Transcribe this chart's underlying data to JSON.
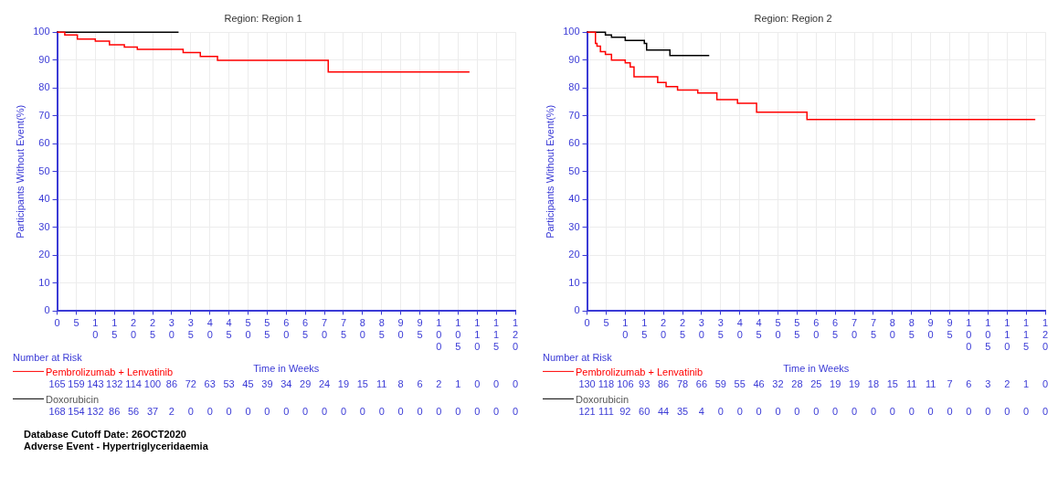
{
  "chart_data": [
    {
      "type": "step",
      "title": "Region: Region 1",
      "xlabel": "Time in Weeks",
      "ylabel": "Participants Without Event(%)",
      "xlim": [
        0,
        120
      ],
      "xticks": [
        0,
        5,
        10,
        15,
        20,
        25,
        30,
        35,
        40,
        45,
        50,
        55,
        60,
        65,
        70,
        75,
        80,
        85,
        90,
        95,
        100,
        105,
        110,
        115,
        120
      ],
      "ylim": [
        0,
        100
      ],
      "yticks": [
        0,
        10,
        20,
        30,
        40,
        50,
        60,
        70,
        80,
        90,
        100
      ],
      "grid": true,
      "legend": "bottom",
      "marker": "none",
      "series": [
        {
          "name": "Pembrolizumab + Lenvatinib",
          "color": "#ff0000",
          "x": [
            0,
            2,
            5.3,
            10,
            13.7,
            17.6,
            21,
            33,
            37.5,
            42,
            71,
            108
          ],
          "values": [
            100,
            99,
            97.5,
            96.8,
            95.5,
            94.7,
            93.8,
            92.7,
            91.3,
            89.9,
            85.7,
            85.7
          ]
        },
        {
          "name": "Doxorubicin",
          "color": "#000000",
          "x": [
            0,
            31.8
          ],
          "values": [
            100,
            100
          ]
        }
      ],
      "annotations": [
        "Number at Risk",
        "165 159 143 132 114 100 86 72 63 53 45 39 34 29 24 19 15 11 8 6 2 1 0 0 0",
        "168 154 132 86 56 37 2 0 0 0 0 0 0 0 0 0 0 0 0 0 0 0 0 0 0",
        "Database Cutoff Date: 26OCT2020",
        "Adverse Event - Hypertriglyceridaemia"
      ]
    },
    {
      "type": "step",
      "title": "Region: Region 2",
      "xlabel": "Time in Weeks",
      "ylabel": "Participants Without Event(%)",
      "xlim": [
        0,
        120
      ],
      "xticks": [
        0,
        5,
        10,
        15,
        20,
        25,
        30,
        35,
        40,
        45,
        50,
        55,
        60,
        65,
        70,
        75,
        80,
        85,
        90,
        95,
        100,
        105,
        110,
        115,
        120
      ],
      "ylim": [
        0,
        100
      ],
      "yticks": [
        0,
        10,
        20,
        30,
        40,
        50,
        60,
        70,
        80,
        90,
        100
      ],
      "grid": true,
      "legend": "bottom",
      "marker": "none",
      "series": [
        {
          "name": "Pembrolizumab + Lenvatinib",
          "color": "#ff0000",
          "x": [
            0,
            2.2,
            2.6,
            3.5,
            4.8,
            6.4,
            10,
            11.3,
            12.3,
            18.5,
            20.7,
            23.7,
            29,
            34,
            39.4,
            44.4,
            57.6,
            117.4
          ],
          "values": [
            100,
            96,
            95,
            93,
            92,
            90,
            89,
            87.5,
            84,
            82,
            80.5,
            79.3,
            78.2,
            75.8,
            74.5,
            71.3,
            68.7,
            68.7
          ]
        },
        {
          "name": "Doxorubicin",
          "color": "#000000",
          "x": [
            0,
            4.8,
            6.4,
            10,
            15,
            15.6,
            21.7,
            32
          ],
          "values": [
            100,
            99,
            98.2,
            97,
            96,
            93.6,
            91.6,
            91.6
          ]
        }
      ],
      "annotations": [
        "Number at Risk",
        "130 118 106 93 86 78 66 59 55 46 32 28 25 19 19 18 15 11 11 7 6 3 2 1 0",
        "121 111 92 60 44 35 4 0 0 0 0 0 0 0 0 0 0 0 0 0 0 0 0 0 0"
      ]
    }
  ]
}
